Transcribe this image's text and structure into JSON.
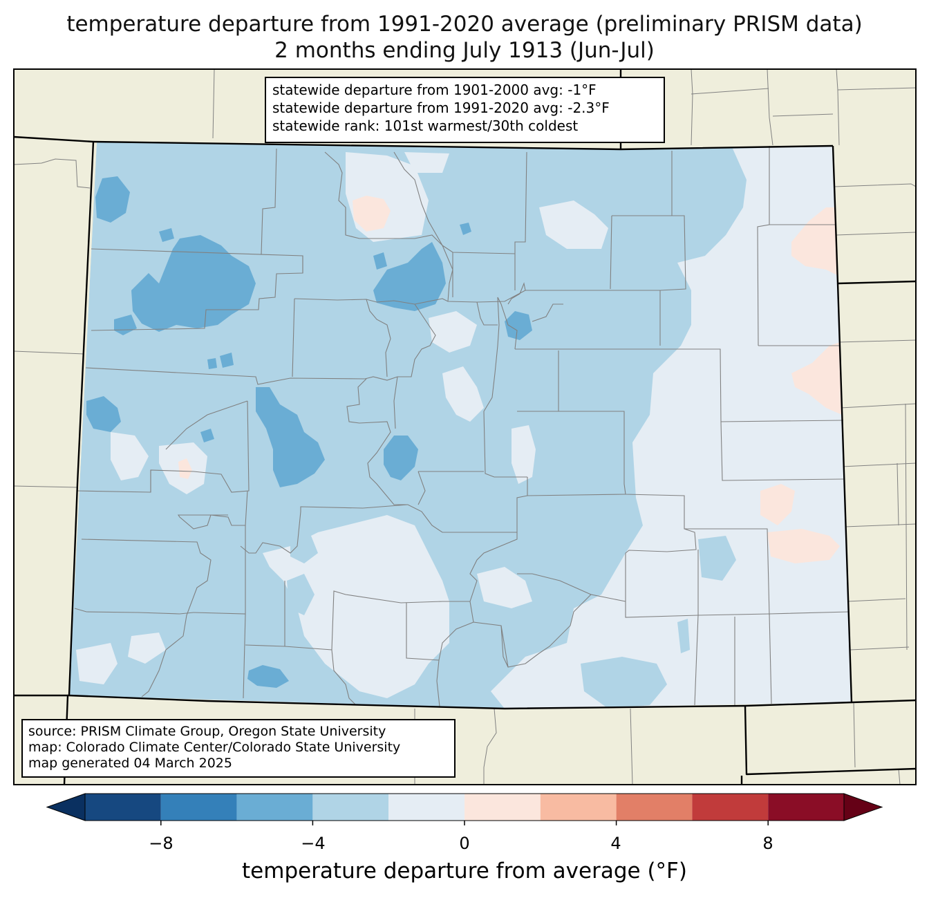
{
  "title": {
    "line1": "temperature departure from 1991-2020 average (preliminary PRISM data)",
    "line2": "2 months ending July 1913 (Jun-Jul)"
  },
  "stats": {
    "line1": "statewide departure from 1901-2000 avg: -1°F",
    "line2": "statewide departure from 1991-2020 avg: -2.3°F",
    "line3": "statewide rank: 101st warmest/30th coldest"
  },
  "source": {
    "line1": "source: PRISM Climate Group, Oregon State University",
    "line2": "map: Colorado Climate Center/Colorado State University",
    "line3": "map generated 04 March 2025"
  },
  "colorbar": {
    "label": "temperature departure from average (°F)",
    "ticks": [
      "−8",
      "−4",
      "0",
      "4",
      "8"
    ],
    "bins": [
      {
        "from": -10,
        "to": -8,
        "color": "#164880"
      },
      {
        "from": -8,
        "to": -6,
        "color": "#3480b9"
      },
      {
        "from": -6,
        "to": -4,
        "color": "#6aadd4"
      },
      {
        "from": -4,
        "to": -2,
        "color": "#b0d4e6"
      },
      {
        "from": -2,
        "to": 0,
        "color": "#e5edf4"
      },
      {
        "from": 0,
        "to": 2,
        "color": "#fbe6dd"
      },
      {
        "from": 2,
        "to": 4,
        "color": "#f8bba2"
      },
      {
        "from": 4,
        "to": 6,
        "color": "#e27f67"
      },
      {
        "from": 6,
        "to": 8,
        "color": "#c13b3b"
      },
      {
        "from": 8,
        "to": 10,
        "color": "#8a0d26"
      }
    ],
    "under_color": "#0a3060",
    "over_color": "#650116"
  },
  "colors": {
    "land": "#efeedc",
    "county_line": "#808080",
    "state_line": "#000000"
  }
}
